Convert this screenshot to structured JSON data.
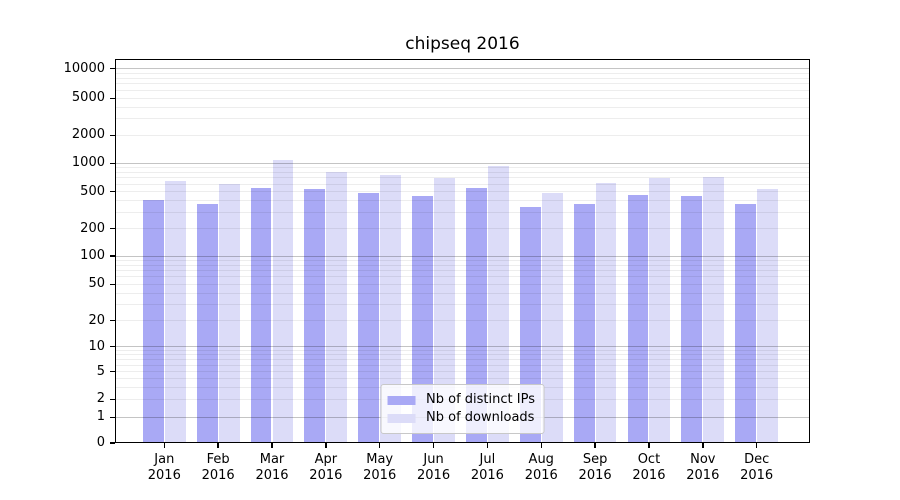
{
  "title": "chipseq 2016",
  "chart_data": {
    "type": "bar",
    "title": "chipseq 2016",
    "categories": [
      "Jan 2016",
      "Feb 2016",
      "Mar 2016",
      "Apr 2016",
      "May 2016",
      "Jun 2016",
      "Jul 2016",
      "Aug 2016",
      "Sep 2016",
      "Oct 2016",
      "Nov 2016",
      "Dec 2016"
    ],
    "series": [
      {
        "name": "Nb of distinct IPs",
        "color": "#a9a9f5",
        "values": [
          410,
          365,
          550,
          530,
          480,
          445,
          545,
          345,
          370,
          460,
          455,
          370
        ]
      },
      {
        "name": "Nb of downloads",
        "color": "#dcdcf8",
        "values": [
          650,
          600,
          1090,
          810,
          760,
          700,
          930,
          480,
          625,
          700,
          715,
          540
        ]
      }
    ],
    "xlabel": "",
    "ylabel": "",
    "yscale": "symlog",
    "y_ticks": [
      0,
      1,
      2,
      5,
      10,
      20,
      50,
      100,
      200,
      500,
      1000,
      2000,
      5000,
      10000
    ],
    "ylim": [
      0,
      12500
    ],
    "grid": true,
    "legend_position": "lower center"
  }
}
